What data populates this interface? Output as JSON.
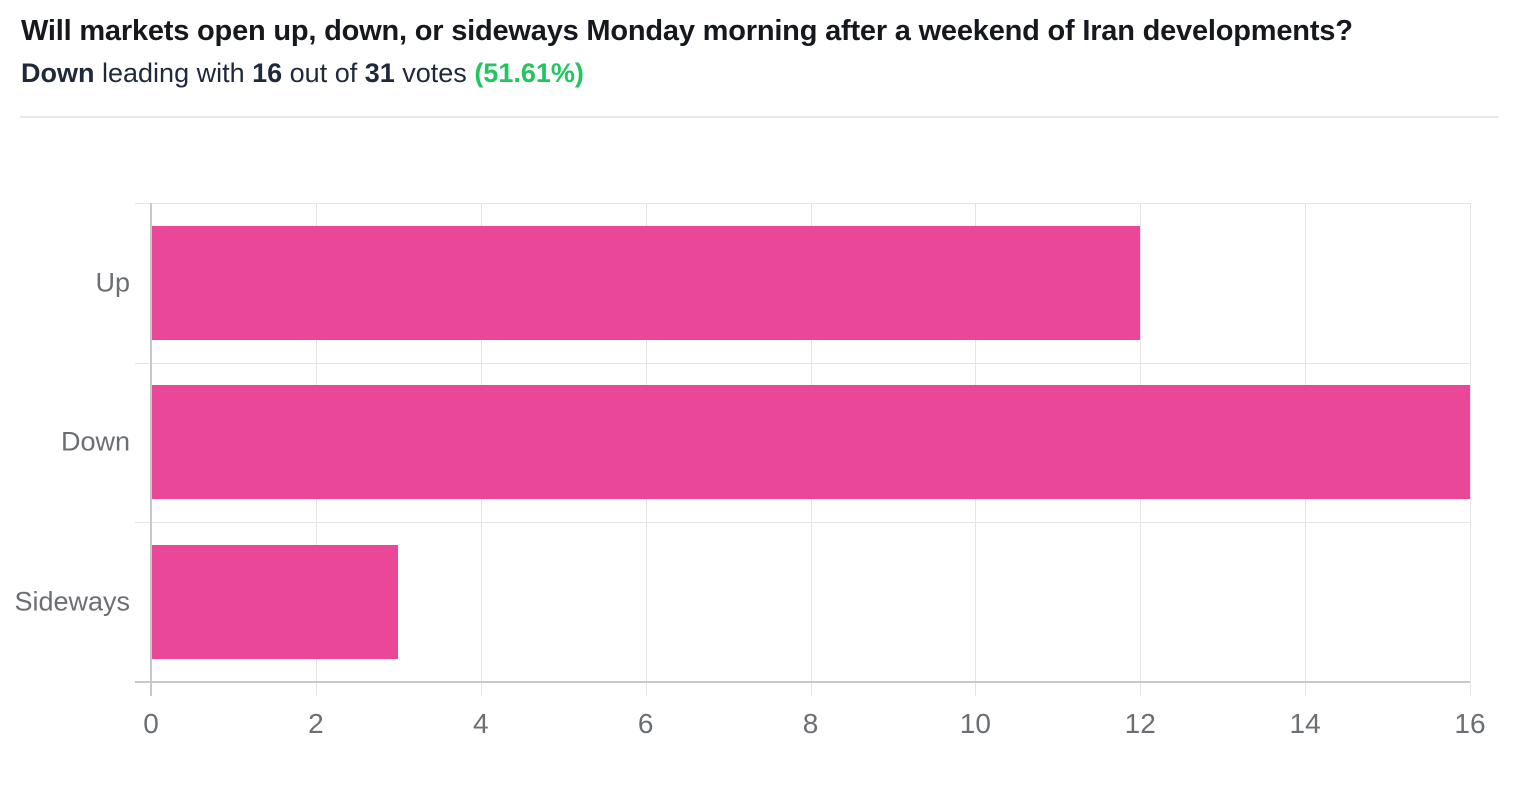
{
  "header": {
    "title": "Will markets open up, down, or sideways Monday morning after a weekend of Iran developments?",
    "summary": {
      "leader": "Down",
      "seg1": " leading with ",
      "votes": "16",
      "seg2": " out of ",
      "total": "31",
      "seg3": " votes ",
      "percent": "(51.61%)"
    }
  },
  "chart_data": {
    "type": "bar",
    "orientation": "horizontal",
    "title": "Will markets open up, down, or sideways Monday morning after a weekend of Iran developments?",
    "subtitle": "Down leading with 16 out of 31 votes (51.61%)",
    "categories": [
      "Up",
      "Down",
      "Sideways"
    ],
    "values": [
      12,
      16,
      3
    ],
    "xlim": [
      0,
      16
    ],
    "xticks": [
      0,
      2,
      4,
      6,
      8,
      10,
      12,
      14,
      16
    ],
    "xlabel": "",
    "ylabel": "",
    "grid": true,
    "legend": false
  },
  "colors": {
    "bar": "#ea4799",
    "percent_green": "#22c55e",
    "title": "#15181e",
    "subtitle": "#1e293b",
    "muted": "#6b6e73",
    "grid": "#e4e4e8",
    "axis": "#c7c8cc"
  }
}
